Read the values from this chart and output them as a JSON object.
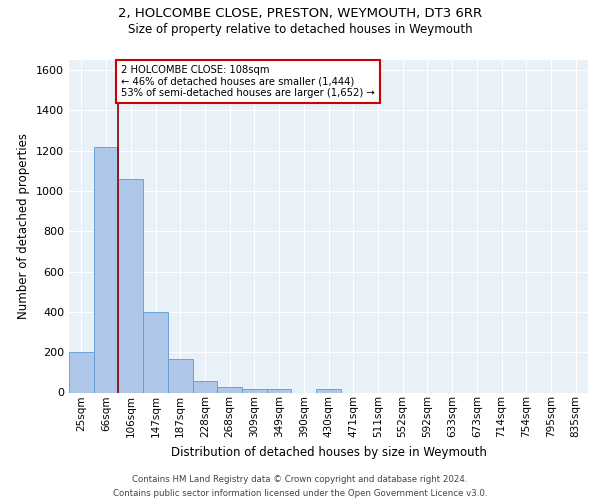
{
  "title1": "2, HOLCOMBE CLOSE, PRESTON, WEYMOUTH, DT3 6RR",
  "title2": "Size of property relative to detached houses in Weymouth",
  "xlabel": "Distribution of detached houses by size in Weymouth",
  "ylabel": "Number of detached properties",
  "bin_labels": [
    "25sqm",
    "66sqm",
    "106sqm",
    "147sqm",
    "187sqm",
    "228sqm",
    "268sqm",
    "309sqm",
    "349sqm",
    "390sqm",
    "430sqm",
    "471sqm",
    "511sqm",
    "552sqm",
    "592sqm",
    "633sqm",
    "673sqm",
    "714sqm",
    "754sqm",
    "795sqm",
    "835sqm"
  ],
  "bar_heights": [
    200,
    1220,
    1060,
    400,
    165,
    55,
    25,
    15,
    15,
    0,
    15,
    0,
    0,
    0,
    0,
    0,
    0,
    0,
    0,
    0,
    0
  ],
  "bar_color": "#aec6e8",
  "bar_edge_color": "#5b9bd5",
  "property_bin_index": 2,
  "vline_color": "#8b0000",
  "annotation_line1": "2 HOLCOMBE CLOSE: 108sqm",
  "annotation_line2": "← 46% of detached houses are smaller (1,444)",
  "annotation_line3": "53% of semi-detached houses are larger (1,652) →",
  "annotation_box_color": "white",
  "annotation_box_edge_color": "#cc0000",
  "footer_text": "Contains HM Land Registry data © Crown copyright and database right 2024.\nContains public sector information licensed under the Open Government Licence v3.0.",
  "ylim": [
    0,
    1650
  ],
  "yticks": [
    0,
    200,
    400,
    600,
    800,
    1000,
    1200,
    1400,
    1600
  ],
  "background_color": "#e8f0f8",
  "grid_color": "white"
}
